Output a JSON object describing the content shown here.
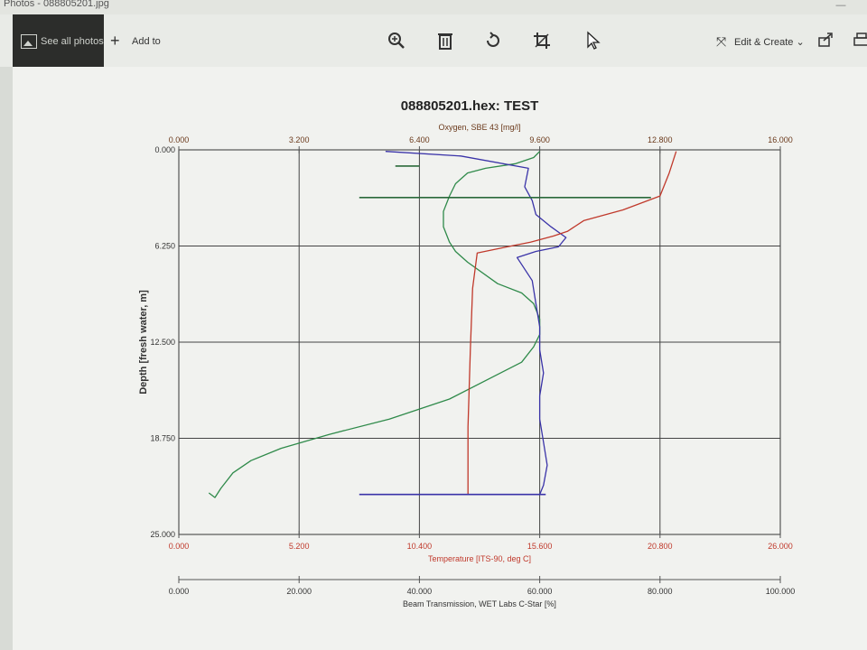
{
  "window": {
    "title": "Photos - 088805201.jpg"
  },
  "toolbar": {
    "see_all_label": "See all photos",
    "add_to_label": "Add to",
    "edit_create_label": "Edit & Create",
    "icons": [
      "zoom-icon",
      "delete-icon",
      "rotate-icon",
      "crop-icon",
      "share-icon",
      "print-icon"
    ]
  },
  "chart_data": {
    "type": "line",
    "title": "088805201.hex: TEST",
    "ylabel": "Depth [fresh water, m]",
    "ylim": [
      0,
      25
    ],
    "y_inverted": true,
    "y_ticks": [
      "0.000",
      "6.250",
      "12.500",
      "18.750",
      "25.000"
    ],
    "grid": true,
    "axes": [
      {
        "name": "Oxygen, SBE 43 [mg/l]",
        "position": "top",
        "range": [
          0,
          16
        ],
        "ticks": [
          "0.000",
          "3.200",
          "6.400",
          "9.600",
          "12.800",
          "16.000"
        ],
        "color": "#6b3a1c"
      },
      {
        "name": "Temperature [ITS-90, deg C]",
        "position": "bottom",
        "range": [
          0,
          26
        ],
        "ticks": [
          "0.000",
          "5.200",
          "10.400",
          "15.600",
          "20.800",
          "26.000"
        ],
        "color": "#c0392b"
      },
      {
        "name": "Beam Transmission, WET Labs C-Star [%]",
        "position": "bottom-2",
        "range": [
          0,
          100
        ],
        "ticks": [
          "0.000",
          "20.000",
          "40.000",
          "60.000",
          "80.000",
          "100.000"
        ],
        "color": "#333333"
      }
    ],
    "series": [
      {
        "color": "#2f8a4a",
        "axis": 2,
        "x": [
          60,
          59,
          56,
          51,
          48,
          46,
          45,
          44,
          44,
          45,
          46,
          48,
          53,
          57,
          59,
          60,
          60,
          59,
          57,
          52,
          45,
          35,
          25,
          17,
          12,
          9,
          7,
          6,
          5
        ],
        "y": [
          0.1,
          0.5,
          0.9,
          1.2,
          1.5,
          2.2,
          3,
          4,
          5,
          6,
          6.6,
          7.3,
          8.7,
          9.3,
          10,
          11,
          12,
          12.8,
          13.8,
          14.8,
          16.2,
          17.5,
          18.5,
          19.4,
          20.2,
          21,
          22,
          22.6,
          22.3
        ]
      },
      {
        "color": "#3a33a8",
        "axis": 0,
        "x": [
          5.5,
          7.5,
          9.3,
          9.2,
          9.4,
          9.5,
          9.9,
          10.3,
          10.1,
          9.5,
          9.0,
          9.4,
          9.5,
          9.6,
          9.6,
          9.7,
          9.6,
          9.6,
          9.7,
          9.8,
          9.7,
          9.6
        ],
        "y": [
          0.1,
          0.4,
          1.2,
          2.4,
          3.3,
          4.2,
          5.0,
          5.7,
          6.3,
          6.6,
          7.0,
          8.5,
          10.0,
          11.5,
          13.0,
          14.5,
          16.0,
          17.5,
          19.0,
          20.5,
          21.8,
          22.4
        ]
      },
      {
        "color": "#c0392b",
        "axis": 1,
        "x": [
          21.5,
          21.2,
          20.8,
          19.2,
          17.5,
          16.8,
          16.2,
          15.2,
          14.2,
          12.9,
          12.7,
          12.6,
          12.5,
          12.5
        ],
        "y": [
          0.1,
          1.5,
          3.0,
          3.9,
          4.6,
          5.3,
          5.6,
          6.0,
          6.3,
          6.7,
          9.0,
          13.0,
          18.0,
          22.4
        ]
      }
    ],
    "markers": [
      {
        "color": "#2a6a3a",
        "x_pct": [
          36,
          40
        ],
        "y": 1.05
      },
      {
        "color": "#2a6a3a",
        "x_pct": [
          30,
          78.5
        ],
        "y": 3.1
      },
      {
        "color": "#3a33a8",
        "x_pct": [
          30,
          61
        ],
        "y": 22.4
      }
    ]
  }
}
